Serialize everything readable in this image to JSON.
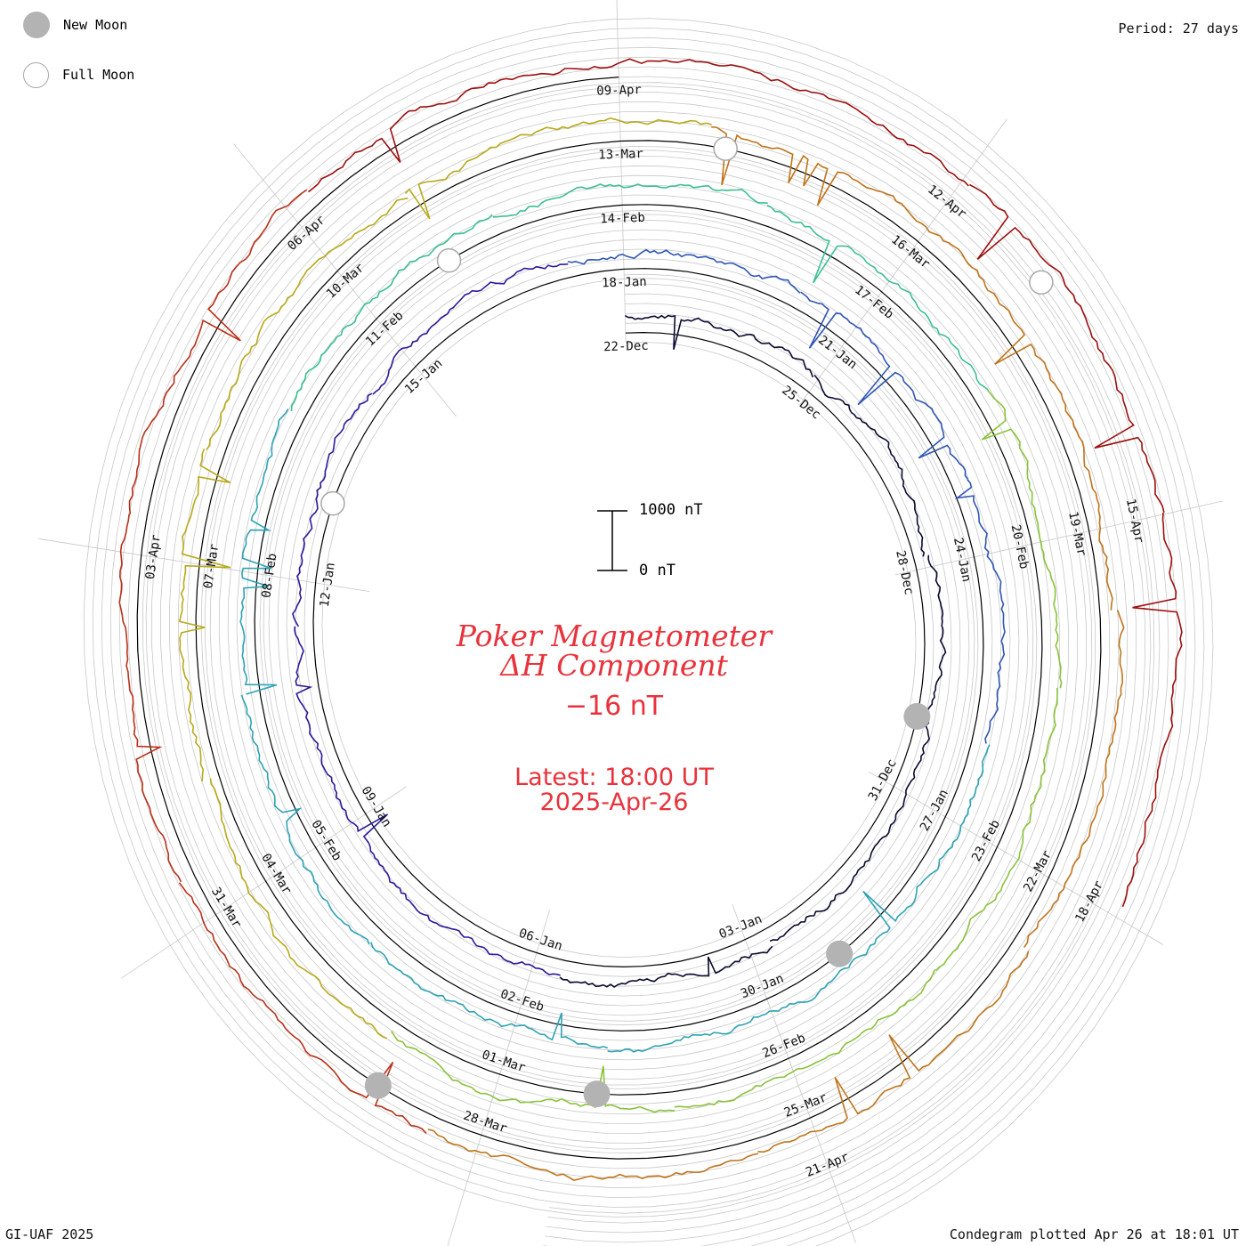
{
  "period_label": "Period: 27 days",
  "legend": {
    "new_moon": "New Moon",
    "full_moon": "Full Moon"
  },
  "title": {
    "line1": "Poker Magnetometer",
    "line2": "ΔH Component",
    "value": "−16 nT"
  },
  "latest": {
    "time": "Latest: 18:00 UT",
    "date": "2025-Apr-26"
  },
  "scale": {
    "top_label": "1000 nT",
    "bottom_label": "0 nT"
  },
  "footer": {
    "left": "GI-UAF 2025",
    "right": "Condegram plotted Apr 26 at 18:01 UT"
  },
  "colors": {
    "grid": "#c8c8c8",
    "baseline": "#000000",
    "title": "#e8333c",
    "rotation_colors": [
      "#0a0a30",
      "#2a1a9a",
      "#2f55b5",
      "#2ea3b4",
      "#3cc08e",
      "#8ac23a",
      "#b8a91a",
      "#c0731a",
      "#b83018",
      "#9c0f0f"
    ]
  },
  "chart_data": {
    "type": "condegram",
    "period_days": 27,
    "component": "ΔH",
    "units": "nT",
    "latest_value": -16,
    "rotations": [
      {
        "labels": [
          "22-Dec",
          "25-Dec",
          "28-Dec",
          "31-Dec",
          "03-Jan",
          "06-Jan",
          "09-Jan",
          "12-Jan",
          "15-Jan"
        ]
      },
      {
        "labels": [
          "18-Jan",
          "21-Jan",
          "24-Jan",
          "27-Jan",
          "30-Jan",
          "02-Feb",
          "05-Feb",
          "08-Feb",
          "11-Feb"
        ]
      },
      {
        "labels": [
          "14-Feb",
          "17-Feb",
          "20-Feb",
          "23-Feb",
          "26-Feb",
          "01-Mar",
          "04-Mar",
          "07-Mar",
          "10-Mar"
        ]
      },
      {
        "labels": [
          "13-Mar",
          "16-Mar",
          "19-Mar",
          "22-Mar",
          "25-Mar",
          "28-Mar",
          "31-Mar",
          "03-Apr",
          "06-Apr"
        ]
      },
      {
        "labels": [
          "09-Apr",
          "12-Apr",
          "15-Apr",
          "18-Apr",
          "21-Apr"
        ]
      }
    ],
    "new_moons": [
      "2024-Dec-30",
      "2025-Jan-29",
      "2025-Feb-28",
      "2025-Mar-29"
    ],
    "full_moons": [
      "2025-Jan-13",
      "2025-Feb-12",
      "2025-Mar-14",
      "2025-Apr-13"
    ]
  }
}
